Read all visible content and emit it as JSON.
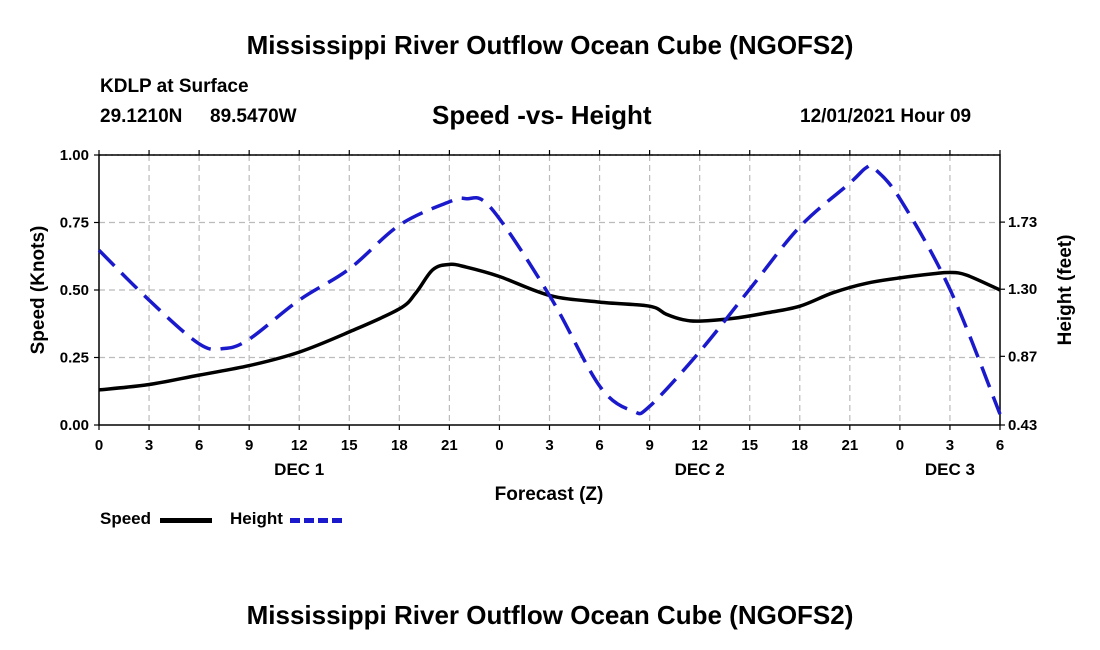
{
  "page": {
    "title_top": "Mississippi River Outflow Ocean Cube (NGOFS2)",
    "title_bottom": "Mississippi River Outflow Ocean Cube (NGOFS2)",
    "station": "KDLP at Surface",
    "lat": "29.1210N",
    "lon": "89.5470W",
    "datetime": "12/01/2021 Hour 09"
  },
  "legend": {
    "speed_label": "Speed",
    "height_label": "Height"
  },
  "colors": {
    "speed": "#000000",
    "height": "#1a1acc",
    "grid": "#bbbbbb"
  },
  "chart_data": {
    "type": "line",
    "title": "Speed -vs- Height",
    "xlabel": "Forecast (Z)",
    "ylabel": "Speed (Knots)",
    "y2label": "Height (feet)",
    "x_hours": [
      0,
      54
    ],
    "x_tick_labels": [
      "0",
      "3",
      "6",
      "9",
      "12",
      "15",
      "18",
      "21",
      "0",
      "3",
      "6",
      "9",
      "12",
      "15",
      "18",
      "21",
      "0",
      "3",
      "6"
    ],
    "day_labels": [
      {
        "label": "DEC 1",
        "hour": 12
      },
      {
        "label": "DEC 2",
        "hour": 36
      },
      {
        "label": "DEC 3",
        "hour": 51
      }
    ],
    "ylim": [
      0,
      1.0
    ],
    "y_ticks": [
      0,
      0.25,
      0.5,
      0.75,
      1.0
    ],
    "y_tick_labels": [
      "0.00",
      "0.25",
      "0.50",
      "0.75",
      "1.00"
    ],
    "y2lim": [
      0.43,
      2.16
    ],
    "y2_ticks": [
      0.43,
      0.87,
      1.3,
      1.73
    ],
    "y2_tick_labels": [
      "0.43",
      "0.87",
      "1.30",
      "1.73"
    ],
    "series": [
      {
        "name": "Speed",
        "axis": "left",
        "style": "solid",
        "x": [
          0,
          3,
          6,
          9,
          12,
          15,
          18,
          19,
          20,
          21,
          22,
          24,
          27,
          30,
          33,
          34,
          35,
          36,
          38,
          40,
          42,
          44,
          46,
          48,
          50,
          51,
          52,
          54
        ],
        "values": [
          0.13,
          0.15,
          0.185,
          0.22,
          0.27,
          0.345,
          0.43,
          0.49,
          0.575,
          0.595,
          0.585,
          0.55,
          0.48,
          0.455,
          0.44,
          0.41,
          0.39,
          0.385,
          0.395,
          0.415,
          0.44,
          0.49,
          0.525,
          0.545,
          0.56,
          0.565,
          0.555,
          0.5
        ]
      },
      {
        "name": "Height",
        "axis": "right",
        "style": "dashed",
        "x": [
          0,
          3,
          6,
          7.5,
          9,
          12,
          15,
          18,
          21,
          22,
          23.5,
          27,
          30,
          32,
          33,
          36,
          39,
          42,
          45,
          46,
          46.5,
          48,
          51,
          54
        ],
        "values": [
          1.55,
          1.23,
          0.95,
          0.92,
          0.98,
          1.23,
          1.43,
          1.71,
          1.86,
          1.88,
          1.82,
          1.26,
          0.68,
          0.52,
          0.55,
          0.9,
          1.3,
          1.7,
          1.98,
          2.08,
          2.07,
          1.88,
          1.3,
          0.5
        ]
      }
    ]
  }
}
